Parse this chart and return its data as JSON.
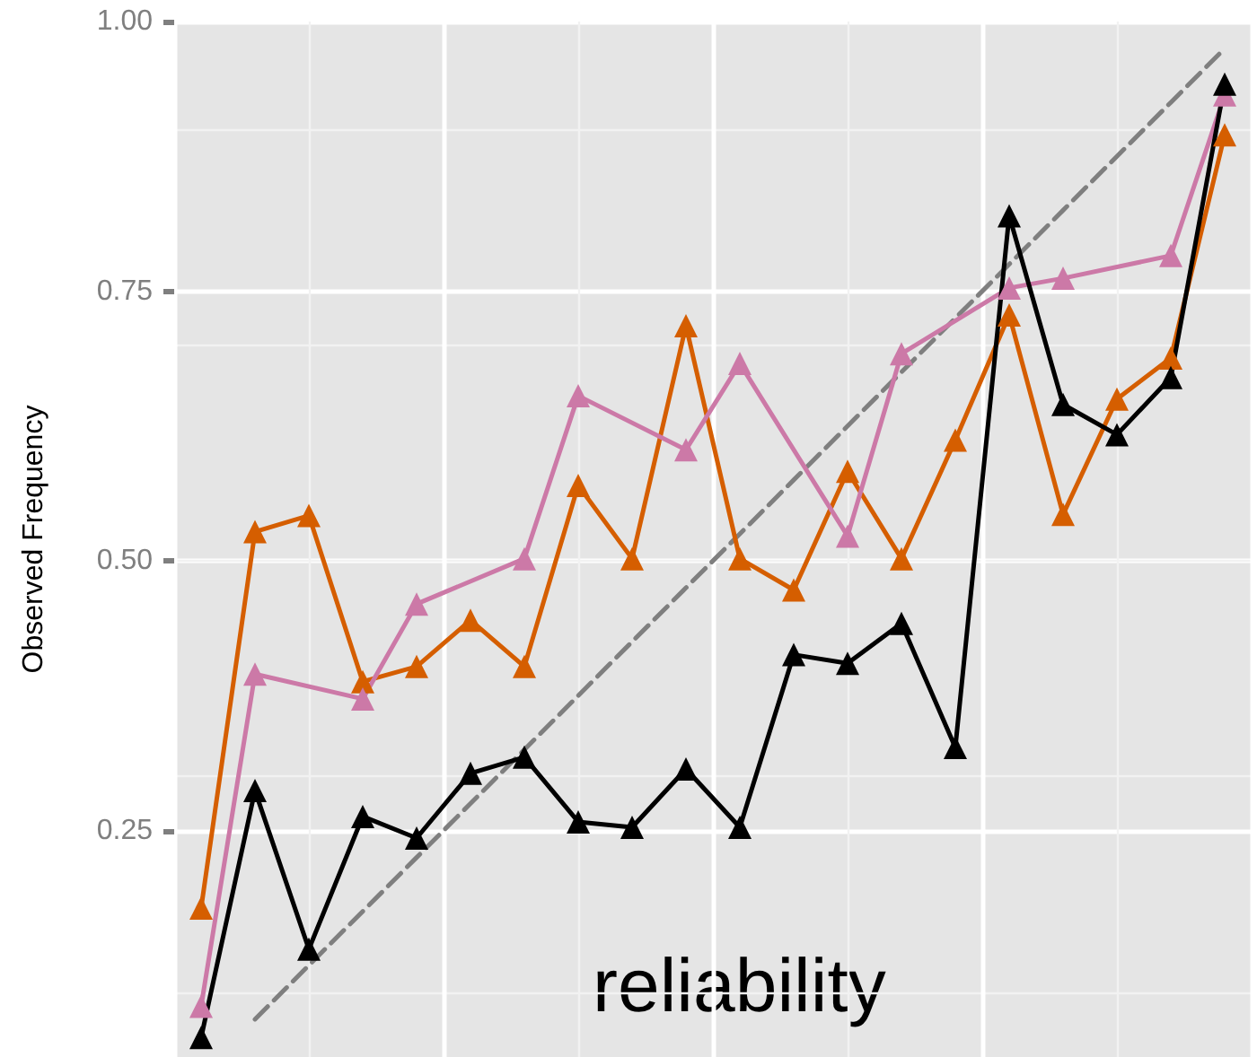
{
  "chart_data": {
    "type": "line",
    "ylabel": "Observed Frequency",
    "annotations": [
      "reliability"
    ],
    "categories": [
      null,
      null,
      null,
      null,
      null,
      null,
      null,
      null,
      null,
      null,
      null,
      null,
      null,
      null,
      null,
      null,
      null,
      null,
      null,
      null
    ],
    "series": [
      {
        "color": "#d55e00",
        "values": [
          0.178,
          0.527,
          0.542,
          0.388,
          0.402,
          0.445,
          0.402,
          0.57,
          0.502,
          0.718,
          0.502,
          0.473,
          0.583,
          0.502,
          0.612,
          0.728,
          0.543,
          0.65,
          0.688,
          0.895
        ]
      },
      {
        "color": "#cc79a7",
        "values": [
          0.087,
          0.395,
          null,
          0.372,
          0.46,
          null,
          0.502,
          0.653,
          null,
          0.603,
          0.683,
          null,
          0.523,
          0.692,
          null,
          0.753,
          0.762,
          null,
          0.783,
          0.932
        ]
      },
      {
        "color": "#000000",
        "values": [
          0.058,
          0.287,
          0.14,
          0.263,
          0.243,
          0.303,
          0.318,
          0.258,
          0.253,
          0.307,
          0.253,
          0.413,
          0.405,
          0.442,
          0.327,
          0.82,
          0.645,
          0.617,
          0.67,
          0.942
        ]
      },
      {
        "color": "#7f7f7f",
        "values": [
          null,
          0.075,
          0.125,
          0.175,
          0.225,
          0.275,
          0.325,
          0.375,
          0.425,
          0.475,
          0.525,
          0.575,
          0.625,
          0.675,
          0.725,
          0.775,
          0.825,
          0.875,
          0.925,
          0.975
        ],
        "marker": "none",
        "line_style": "dashed"
      }
    ],
    "ylim": [
      0.04,
      1.0
    ],
    "yticks": [
      {
        "value": 0.25,
        "label": "0.25"
      },
      {
        "value": 0.5,
        "label": "0.50"
      },
      {
        "value": 0.75,
        "label": "0.75"
      },
      {
        "value": 1.0,
        "label": "1.00"
      }
    ],
    "tick_labels": "y",
    "grid": true,
    "marker": "triangle",
    "line_style": "solid"
  }
}
